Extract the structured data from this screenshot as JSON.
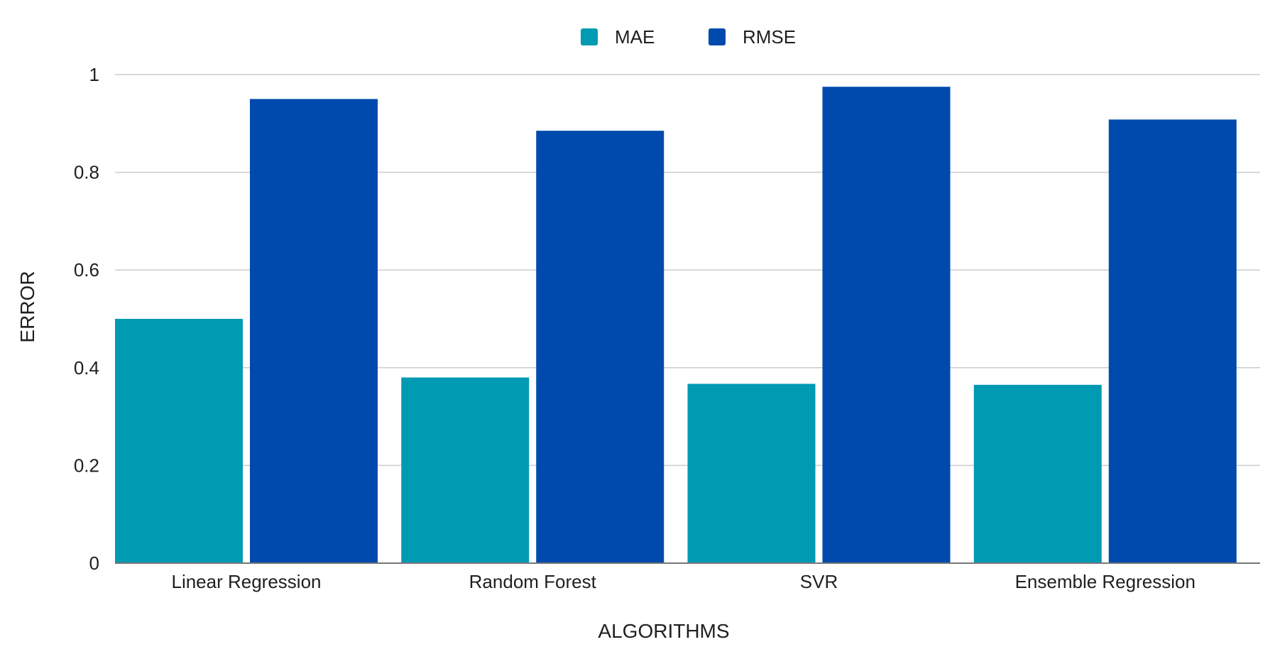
{
  "chart_data": {
    "type": "bar",
    "title": "",
    "xlabel": "ALGORITHMS",
    "ylabel": "ERROR",
    "categories": [
      "Linear Regression",
      "Random Forest",
      "SVR",
      "Ensemble Regression"
    ],
    "series": [
      {
        "name": "MAE",
        "color": "#009AB3",
        "values": [
          0.5,
          0.38,
          0.367,
          0.365
        ]
      },
      {
        "name": "RMSE",
        "color": "#004AAD",
        "values": [
          0.95,
          0.885,
          0.975,
          0.908
        ]
      }
    ],
    "ylim": [
      0,
      1
    ],
    "yticks": [
      0,
      0.2,
      0.4,
      0.6,
      0.8,
      1
    ],
    "ytick_labels": [
      "0",
      "0.2",
      "0.4",
      "0.6",
      "0.8",
      "1"
    ],
    "grid": true,
    "legend_position": "top-center",
    "gridline_color": "#cccccc",
    "baseline_color": "#777777"
  }
}
